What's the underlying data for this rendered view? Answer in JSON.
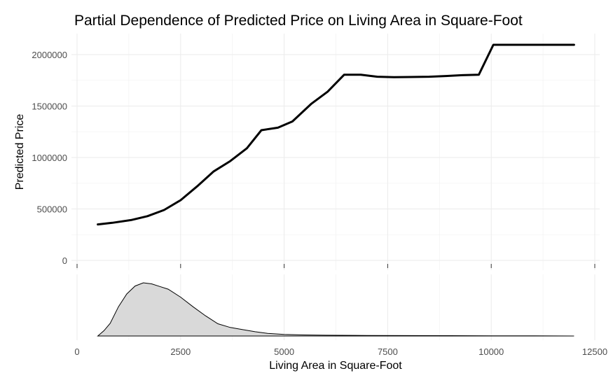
{
  "chart_data": {
    "type": "line",
    "title": "Partial Dependence of Predicted Price on Living Area in Square-Foot",
    "xlabel": "Living Area in Square-Foot",
    "ylabel": "Predicted Price",
    "xlim": [
      0,
      12500
    ],
    "ylim": [
      0,
      2100000
    ],
    "x_ticks": [
      0,
      2500,
      5000,
      7500,
      10000,
      12500
    ],
    "x_tick_labels": [
      "0",
      "2500",
      "5000",
      "7500",
      "10000",
      "12500"
    ],
    "y_ticks": [
      0,
      500000,
      1000000,
      1500000,
      2000000
    ],
    "y_tick_labels": [
      "0",
      "500000",
      "1000000",
      "1500000",
      "2000000"
    ],
    "grid": true,
    "legend": "none",
    "line_color": "#000000",
    "series": [
      {
        "x": [
          500,
          850,
          1300,
          1700,
          2100,
          2500,
          2900,
          3300,
          3700,
          4100,
          4450,
          4850,
          5200,
          5650,
          6050,
          6450,
          6850,
          7250,
          7650,
          8050,
          8500,
          8900,
          9300,
          9700,
          10050,
          10500,
          11000,
          11500,
          12000
        ],
        "y": [
          350000,
          365000,
          392000,
          430000,
          490000,
          585000,
          720000,
          865000,
          965000,
          1090000,
          1265000,
          1290000,
          1350000,
          1520000,
          1640000,
          1805000,
          1805000,
          1785000,
          1780000,
          1782000,
          1785000,
          1792000,
          1800000,
          1805000,
          2095000,
          2095000,
          2095000,
          2095000,
          2095000
        ]
      }
    ],
    "density": {
      "x": [
        500,
        650,
        800,
        1000,
        1200,
        1400,
        1600,
        1800,
        2000,
        2200,
        2500,
        2800,
        3100,
        3400,
        3700,
        4000,
        4300,
        4600,
        5000,
        5500,
        6000,
        7000,
        8000,
        9000,
        10000,
        11000,
        12000
      ],
      "y": [
        0.0,
        0.1,
        0.24,
        0.55,
        0.79,
        0.94,
        1.0,
        0.98,
        0.93,
        0.88,
        0.73,
        0.55,
        0.38,
        0.23,
        0.16,
        0.12,
        0.08,
        0.05,
        0.03,
        0.02,
        0.015,
        0.01,
        0.008,
        0.006,
        0.004,
        0.003,
        0.0
      ]
    }
  }
}
